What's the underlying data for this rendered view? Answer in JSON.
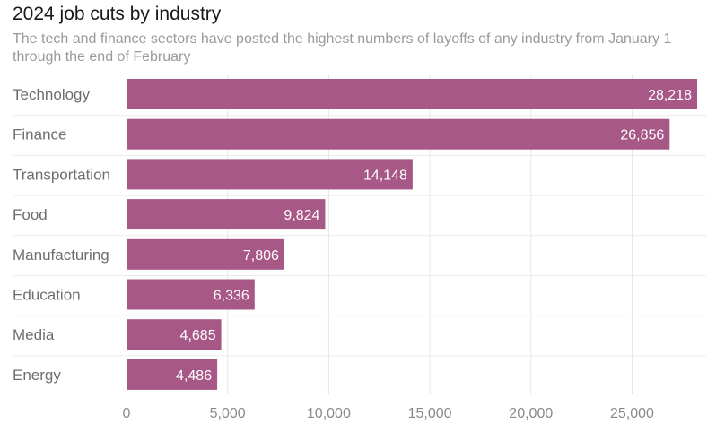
{
  "chart_data": {
    "type": "bar",
    "orientation": "horizontal",
    "title": "2024 job cuts by industry",
    "subtitle": "The tech and finance sectors have posted the highest numbers of layoffs of any industry from January 1 through the end of February",
    "categories": [
      "Technology",
      "Finance",
      "Transportation",
      "Food",
      "Manufacturing",
      "Education",
      "Media",
      "Energy"
    ],
    "values": [
      28218,
      26856,
      14148,
      9824,
      7806,
      6336,
      4685,
      4486
    ],
    "value_labels": [
      "28,218",
      "26,856",
      "14,148",
      "9,824",
      "7,806",
      "6,336",
      "4,685",
      "4,486"
    ],
    "xticks": [
      0,
      5000,
      10000,
      15000,
      20000,
      25000
    ],
    "xtick_labels": [
      "0",
      "5,000",
      "10,000",
      "15,000",
      "20,000",
      "25,000"
    ],
    "xlim": [
      0,
      28218
    ],
    "grid": true,
    "bar_color": "#a85886"
  }
}
